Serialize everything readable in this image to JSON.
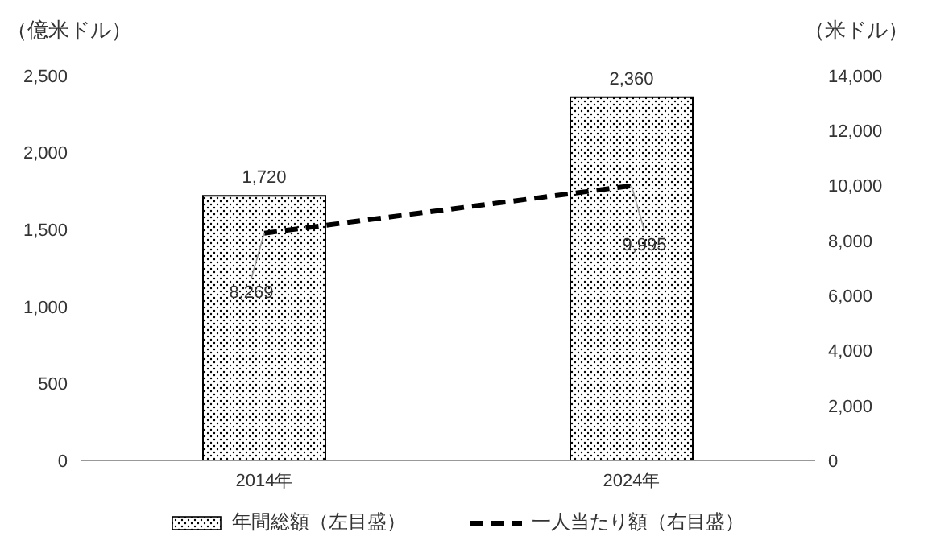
{
  "chart_data": {
    "type": "bar",
    "categories": [
      "2014年",
      "2024年"
    ],
    "ylabel": "（億米ドル）",
    "y2label": "（米ドル）",
    "series": [
      {
        "name": "年間総額（左目盛）",
        "color": "#000000",
        "values": [
          1720,
          2360
        ],
        "value_labels": [
          "1,720",
          "2,360"
        ]
      },
      {
        "name": "一人当たり額（右目盛）",
        "type": "line",
        "axis": "y2",
        "color": "#000000",
        "values": [
          8269,
          9995
        ],
        "value_labels": [
          "8,269",
          "9,995"
        ]
      }
    ],
    "ylim": [
      0,
      2500
    ],
    "yticks": [
      0,
      {
        "value": 500,
        "label": "500"
      },
      {
        "value": 1000,
        "label": "1,000"
      },
      {
        "value": 1500,
        "label": "1,500"
      },
      {
        "value": 2000,
        "label": "2,000"
      },
      {
        "value": 2500,
        "label": "2,500"
      }
    ],
    "y2lim": [
      0,
      14000
    ],
    "y2ticks": [
      0,
      {
        "value": 2000,
        "label": "2,000"
      },
      {
        "value": 4000,
        "label": "4,000"
      },
      {
        "value": 6000,
        "label": "6,000"
      },
      {
        "value": 8000,
        "label": "8,000"
      },
      {
        "value": 10000,
        "label": "10,000"
      },
      {
        "value": 12000,
        "label": "12,000"
      },
      {
        "value": 14000,
        "label": "14,000"
      }
    ],
    "legend": "bottom",
    "marker": "none",
    "line_style": "dashed"
  }
}
